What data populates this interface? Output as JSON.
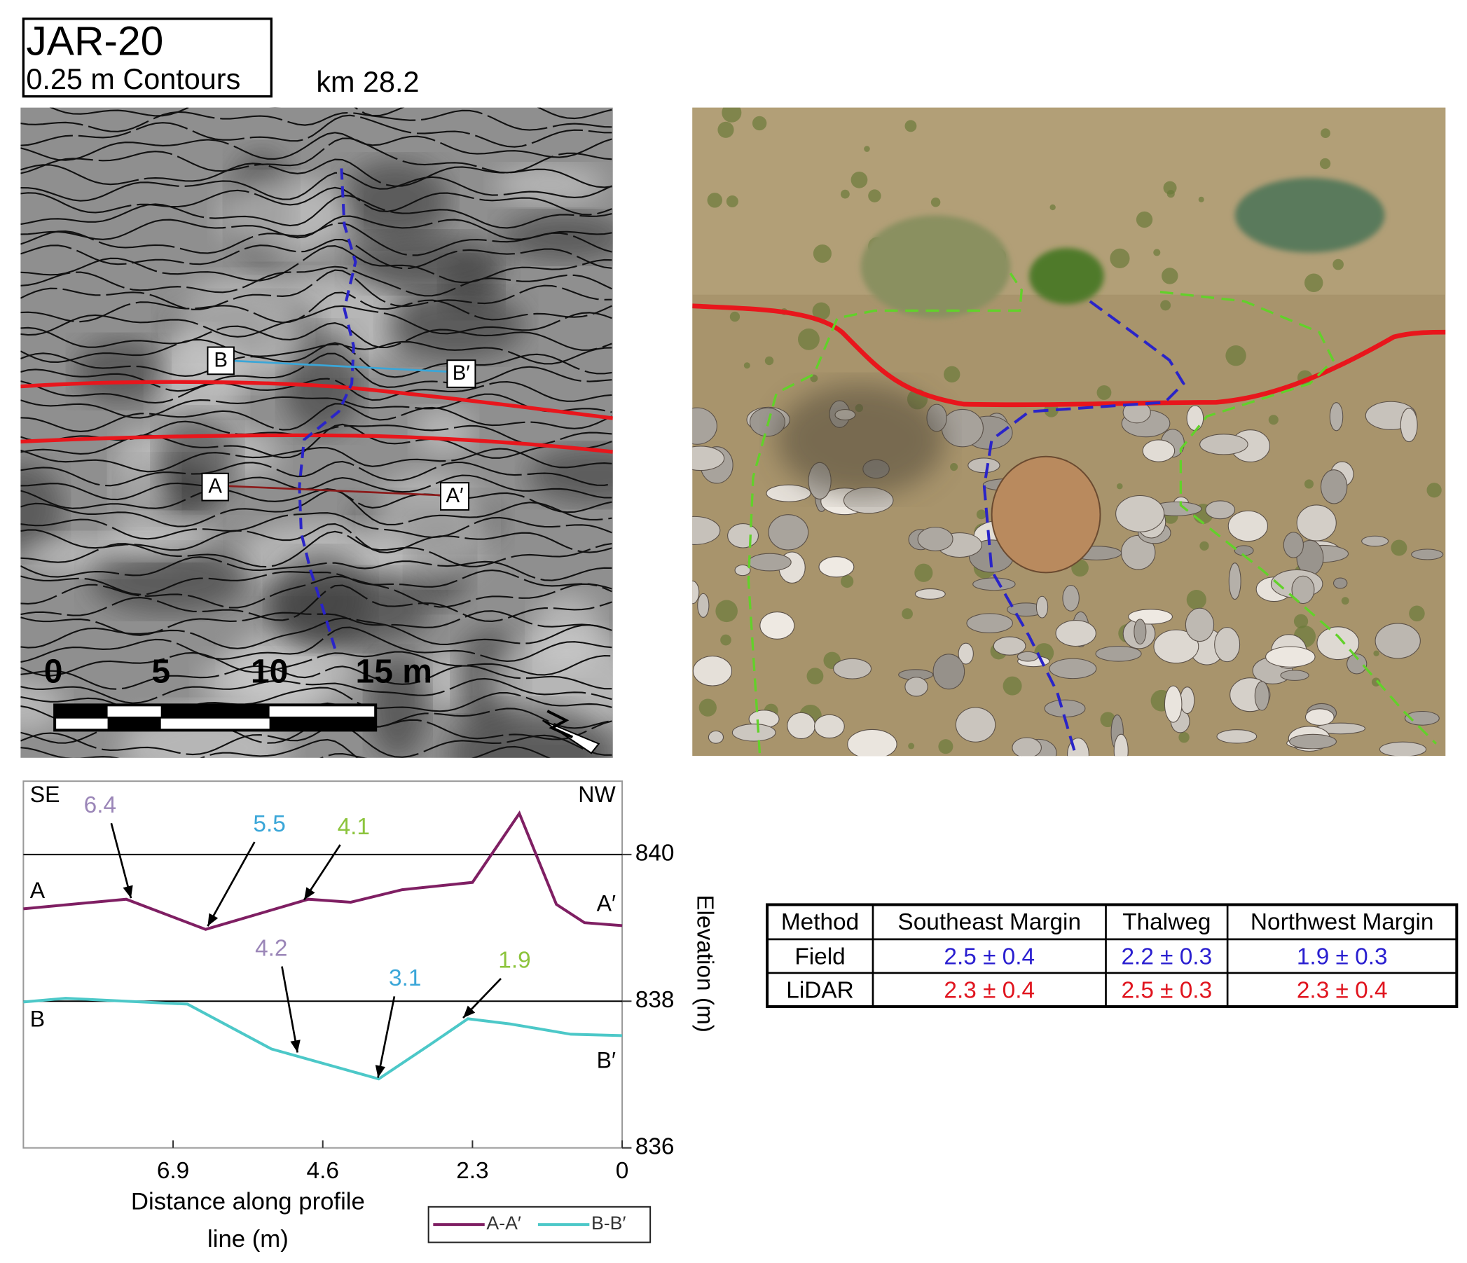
{
  "map": {
    "title": "JAR-20",
    "subtitle": "0.25 m Contours",
    "location": "km 28.2",
    "scale_labels": [
      "0",
      "5",
      "10",
      "15 m"
    ],
    "profile_a": [
      "A",
      "A′"
    ],
    "profile_b": [
      "B",
      "B′"
    ]
  },
  "chart_data": {
    "type": "line",
    "xlabel": "Distance along profile line (m)",
    "ylabel": "Elevation (m)",
    "left_label": "SE",
    "right_label": "NW",
    "xlim": [
      9.2,
      0
    ],
    "xticks": [
      6.9,
      4.6,
      2.3,
      0
    ],
    "ylim": [
      836,
      841
    ],
    "yticks": [
      836,
      838,
      840
    ],
    "grid": true,
    "series": [
      {
        "name": "A-A′",
        "color": "#7f1f63",
        "start_label": "A",
        "end_label": "A′",
        "x": [
          9.2,
          7.62,
          6.4,
          4.82,
          4.17,
          3.38,
          2.3,
          1.58,
          1.01,
          0.58,
          0
        ],
        "values": [
          839.26,
          839.39,
          838.98,
          839.39,
          839.35,
          839.52,
          839.62,
          840.56,
          839.32,
          839.07,
          839.03
        ]
      },
      {
        "name": "B-B′",
        "color": "#4cc8c8",
        "start_label": "B",
        "end_label": "B′",
        "x": [
          9.2,
          8.55,
          6.68,
          5.39,
          3.74,
          2.95,
          2.37,
          1.72,
          0.79,
          0
        ],
        "values": [
          837.99,
          838.04,
          837.96,
          837.35,
          836.94,
          837.41,
          837.76,
          837.69,
          837.55,
          837.53
        ]
      }
    ],
    "annotations": [
      {
        "text": "6.4",
        "color": "#9b86b8"
      },
      {
        "text": "5.5",
        "color": "#3aa6d8"
      },
      {
        "text": "4.1",
        "color": "#8cc43c"
      },
      {
        "text": "4.2",
        "color": "#9b86b8"
      },
      {
        "text": "3.1",
        "color": "#3aa6d8"
      },
      {
        "text": "1.9",
        "color": "#8cc43c"
      }
    ]
  },
  "table": {
    "header": [
      "Method",
      "Southeast Margin",
      "Thalweg",
      "Northwest Margin"
    ],
    "rows": [
      {
        "color": "#2a1fd0",
        "cells": [
          "Field",
          "2.5 ± 0.4",
          "2.2 ± 0.3",
          "1.9 ± 0.3"
        ]
      },
      {
        "color": "#e0141e",
        "cells": [
          "LiDAR",
          "2.3 ± 0.4",
          "2.5 ± 0.3",
          "2.3 ± 0.4"
        ]
      }
    ]
  }
}
